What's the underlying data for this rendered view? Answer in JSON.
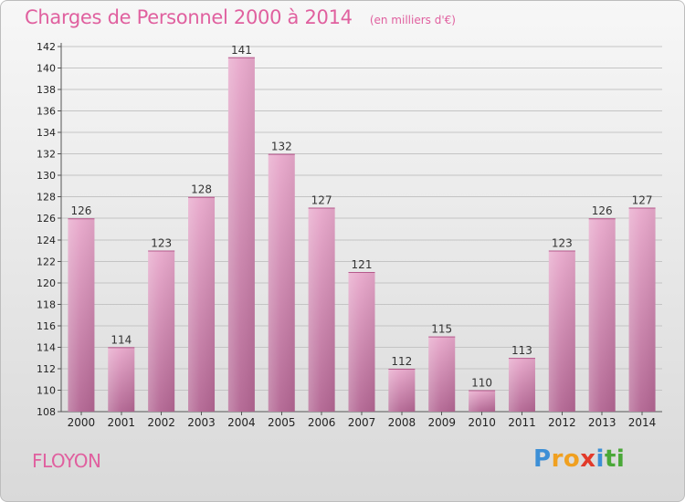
{
  "chart_data": {
    "type": "bar",
    "title": "Charges de Personnel 2000 à 2014",
    "subtitle": "(en milliers d'€)",
    "categories": [
      "2000",
      "2001",
      "2002",
      "2003",
      "2004",
      "2005",
      "2006",
      "2007",
      "2008",
      "2009",
      "2010",
      "2011",
      "2012",
      "2013",
      "2014"
    ],
    "values": [
      126,
      114,
      123,
      128,
      141,
      132,
      127,
      121,
      112,
      115,
      110,
      113,
      123,
      126,
      127
    ],
    "data_labels": [
      "126",
      "114",
      "123",
      "128",
      "141",
      "132",
      "127",
      "121",
      "112",
      "115",
      "110",
      "113",
      "123",
      "126",
      "127"
    ],
    "yticks": [
      108,
      110,
      112,
      114,
      116,
      118,
      120,
      122,
      124,
      126,
      128,
      130,
      132,
      134,
      136,
      138,
      140,
      142
    ],
    "ylim": [
      108,
      142
    ],
    "xlabel": "",
    "ylabel": "",
    "grid": "horizontal",
    "bar_color": "#d4779f"
  },
  "place_name": "FLOYON",
  "logo": {
    "letters": [
      "P",
      "r",
      "o",
      "x",
      "i",
      "t",
      "i"
    ],
    "colors": [
      "#3d8fd6",
      "#f0a020",
      "#f0a020",
      "#e23a2a",
      "#3d8fd6",
      "#4aa838",
      "#4aa838"
    ]
  },
  "colors": {
    "title": "#e0609f",
    "grid": "#c4c4c4"
  }
}
